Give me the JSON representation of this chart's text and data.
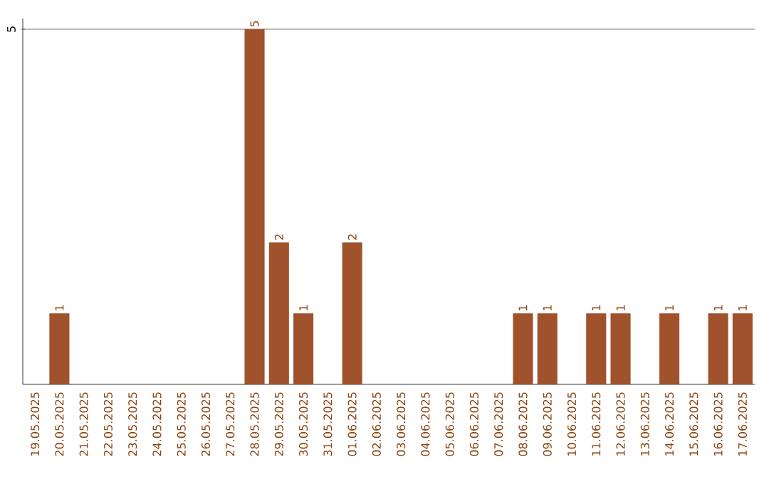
{
  "chart_data": {
    "type": "bar",
    "categories": [
      "19.05.2025",
      "20.05.2025",
      "21.05.2025",
      "22.05.2025",
      "23.05.2025",
      "24.05.2025",
      "25.05.2025",
      "26.05.2025",
      "27.05.2025",
      "28.05.2025",
      "29.05.2025",
      "30.05.2025",
      "31.05.2025",
      "01.06.2025",
      "02.06.2025",
      "03.06.2025",
      "04.06.2025",
      "05.06.2025",
      "06.06.2025",
      "07.06.2025",
      "08.06.2025",
      "09.06.2025",
      "10.06.2025",
      "11.06.2025",
      "12.06.2025",
      "13.06.2025",
      "14.06.2025",
      "15.06.2025",
      "16.06.2025",
      "17.06.2025"
    ],
    "values": [
      0,
      1,
      0,
      0,
      0,
      0,
      0,
      0,
      0,
      5,
      2,
      1,
      0,
      2,
      0,
      0,
      0,
      0,
      0,
      0,
      1,
      1,
      0,
      1,
      1,
      0,
      1,
      0,
      1,
      1
    ],
    "value_labels": [
      null,
      "1",
      null,
      null,
      null,
      null,
      null,
      null,
      null,
      "5",
      "2",
      "1",
      null,
      "2",
      null,
      null,
      null,
      null,
      null,
      null,
      "1",
      "1",
      null,
      "1",
      "1",
      null,
      "1",
      null,
      "1",
      "1"
    ],
    "color": "#a0522d",
    "ylim": [
      0,
      5.15
    ],
    "yticks": [
      5
    ],
    "grid": "y"
  }
}
